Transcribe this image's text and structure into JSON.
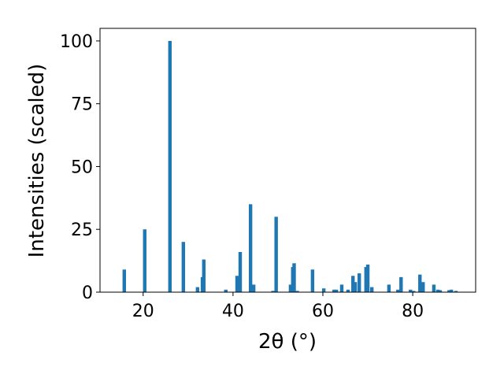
{
  "chart_data": {
    "type": "bar",
    "xlabel": "2θ (°)",
    "ylabel": "Intensities (scaled)",
    "color": "#1f77b4",
    "x": [
      15.8,
      20.35,
      25.96,
      28.95,
      32.1,
      33.2,
      33.5,
      38.4,
      40.9,
      41.6,
      43.9,
      44.6,
      48.9,
      49.6,
      52.8,
      53.3,
      53.6,
      54.3,
      57.7,
      60.2,
      62.5,
      63.0,
      64.2,
      65.6,
      66.7,
      67.2,
      68.1,
      69.6,
      70.0,
      70.9,
      74.7,
      76.7,
      77.4,
      79.5,
      80.2,
      81.6,
      82.3,
      84.7,
      85.6,
      86.1,
      88.1,
      88.6,
      89.6
    ],
    "values": [
      9,
      25,
      100,
      20,
      2,
      6,
      13,
      1,
      6.5,
      16,
      35,
      3,
      0.5,
      30,
      3,
      10,
      11.5,
      0.5,
      9,
      1.5,
      1,
      1,
      3,
      1,
      6.5,
      4,
      7.5,
      10,
      11,
      2,
      3,
      1,
      6,
      1,
      0.5,
      7,
      4,
      3,
      1,
      0.8,
      0.8,
      1,
      0.5
    ],
    "xlim": [
      10.4,
      94.0
    ],
    "ylim": [
      0,
      105
    ],
    "xticks": [
      20,
      40,
      60,
      80
    ],
    "yticks": [
      0,
      25,
      50,
      75,
      100
    ]
  }
}
